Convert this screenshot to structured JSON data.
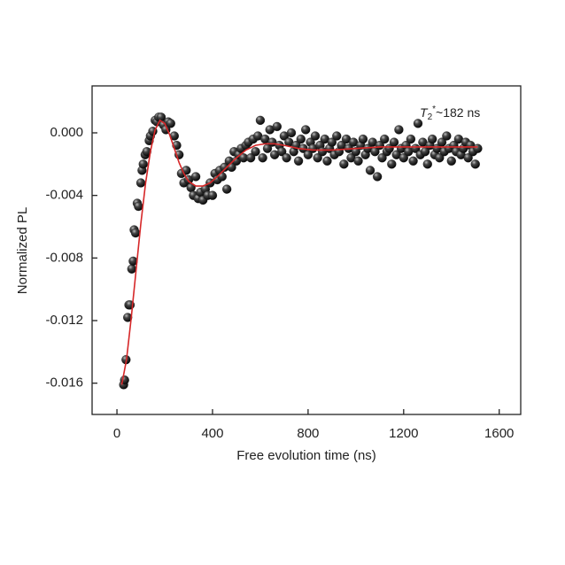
{
  "chart_data": {
    "type": "scatter",
    "xlabel": "Free evolution time (ns)",
    "ylabel": "Normalized PL",
    "annotation": {
      "symbol": "T",
      "subscript": "2",
      "superscript": "*",
      "text": "~182 ns"
    },
    "xlim": [
      -104,
      1690
    ],
    "ylim": [
      -0.018,
      0.003
    ],
    "xticks": [
      0,
      400,
      800,
      1200,
      1600
    ],
    "yticks": [
      {
        "value": 0,
        "label": "0.000"
      },
      {
        "value": -0.004,
        "label": "-0.004"
      },
      {
        "value": -0.008,
        "label": "-0.008"
      },
      {
        "value": -0.012,
        "label": "-0.012"
      },
      {
        "value": -0.016,
        "label": "-0.016"
      }
    ],
    "series": [
      {
        "type": "scatter",
        "color": "#1a1a1a",
        "x": [
          28,
          32,
          38,
          45,
          50,
          55,
          62,
          68,
          72,
          78,
          85,
          90,
          100,
          105,
          110,
          118,
          125,
          135,
          140,
          150,
          160,
          168,
          175,
          185,
          195,
          205,
          215,
          225,
          240,
          250,
          260,
          270,
          280,
          290,
          300,
          310,
          320,
          330,
          340,
          350,
          360,
          370,
          380,
          390,
          400,
          410,
          420,
          430,
          440,
          450,
          460,
          470,
          480,
          490,
          500,
          510,
          520,
          530,
          540,
          550,
          560,
          570,
          580,
          590,
          600,
          610,
          620,
          630,
          640,
          650,
          660,
          670,
          680,
          690,
          700,
          710,
          720,
          730,
          740,
          750,
          760,
          770,
          780,
          790,
          800,
          810,
          820,
          830,
          840,
          850,
          860,
          870,
          880,
          890,
          900,
          910,
          920,
          930,
          940,
          950,
          960,
          970,
          980,
          990,
          1000,
          1010,
          1020,
          1030,
          1040,
          1050,
          1060,
          1070,
          1080,
          1090,
          1100,
          1110,
          1120,
          1130,
          1140,
          1150,
          1160,
          1170,
          1180,
          1190,
          1200,
          1210,
          1220,
          1230,
          1240,
          1250,
          1260,
          1270,
          1280,
          1290,
          1300,
          1310,
          1320,
          1330,
          1340,
          1350,
          1360,
          1370,
          1380,
          1390,
          1400,
          1410,
          1420,
          1430,
          1440,
          1450,
          1460,
          1470,
          1480,
          1490,
          1500,
          1510
        ],
        "values": [
          -0.0161,
          -0.0158,
          -0.0145,
          -0.0118,
          -0.011,
          -0.011,
          -0.0087,
          -0.0082,
          -0.0062,
          -0.0064,
          -0.0045,
          -0.0047,
          -0.0032,
          -0.0024,
          -0.002,
          -0.0014,
          -0.0012,
          -0.0005,
          -0.0002,
          0.0001,
          0.0008,
          0.0007,
          0.001,
          0.001,
          0.0005,
          0.0002,
          0.0007,
          0.0006,
          -0.0002,
          -0.0008,
          -0.0014,
          -0.0026,
          -0.0032,
          -0.0024,
          -0.003,
          -0.0035,
          -0.004,
          -0.0028,
          -0.0042,
          -0.0038,
          -0.0043,
          -0.0036,
          -0.004,
          -0.0032,
          -0.004,
          -0.0026,
          -0.003,
          -0.0024,
          -0.0028,
          -0.0022,
          -0.0036,
          -0.0018,
          -0.0022,
          -0.0012,
          -0.0018,
          -0.0014,
          -0.001,
          -0.0016,
          -0.0008,
          -0.0006,
          -0.0016,
          -0.0004,
          -0.0012,
          -0.0002,
          0.0008,
          -0.0016,
          -0.0004,
          -0.001,
          0.0002,
          -0.0006,
          -0.0014,
          0.0004,
          -0.0008,
          -0.0012,
          -0.0002,
          -0.0016,
          -0.0006,
          0,
          -0.0012,
          -0.0008,
          -0.0018,
          -0.0004,
          -0.001,
          0.0002,
          -0.0014,
          -0.0006,
          -0.001,
          -0.0002,
          -0.0016,
          -0.0008,
          -0.0012,
          -0.0004,
          -0.0018,
          -0.001,
          -0.0006,
          -0.0014,
          -0.0002,
          -0.0012,
          -0.0008,
          -0.002,
          -0.0004,
          -0.001,
          -0.0016,
          -0.0006,
          -0.0012,
          -0.0018,
          -0.0008,
          -0.0004,
          -0.0014,
          -0.001,
          -0.0024,
          -0.0006,
          -0.0012,
          -0.0028,
          -0.0008,
          -0.0016,
          -0.0004,
          -0.0012,
          -0.001,
          -0.002,
          -0.0006,
          -0.0014,
          0.0002,
          -0.001,
          -0.0016,
          -0.0008,
          -0.0012,
          -0.0004,
          -0.0018,
          -0.001,
          0.0006,
          -0.0014,
          -0.0006,
          -0.0012,
          -0.002,
          -0.0008,
          -0.0004,
          -0.0014,
          -0.001,
          -0.0016,
          -0.0006,
          -0.0012,
          -0.0002,
          -0.001,
          -0.0018,
          -0.0008,
          -0.0012,
          -0.0004,
          -0.0014,
          -0.001,
          -0.0006,
          -0.0016,
          -0.0008,
          -0.0012,
          -0.002,
          -0.001
        ]
      },
      {
        "type": "line",
        "color": "#d62728",
        "x": [
          20,
          40,
          60,
          80,
          100,
          120,
          140,
          160,
          180,
          200,
          220,
          240,
          260,
          280,
          300,
          330,
          360,
          390,
          420,
          460,
          500,
          540,
          580,
          620,
          660,
          700,
          760,
          820,
          900,
          1000,
          1100,
          1200,
          1300,
          1400,
          1510
        ],
        "values": [
          -0.0161,
          -0.0145,
          -0.0118,
          -0.0088,
          -0.0058,
          -0.0032,
          -0.0012,
          0.0002,
          0.0008,
          0.0006,
          -0.0001,
          -0.001,
          -0.0019,
          -0.0026,
          -0.0031,
          -0.0034,
          -0.0034,
          -0.0032,
          -0.0028,
          -0.0022,
          -0.0016,
          -0.0011,
          -0.0008,
          -0.0007,
          -0.0007,
          -0.0008,
          -0.001,
          -0.0011,
          -0.0011,
          -0.001,
          -0.0009,
          -0.0009,
          -0.0009,
          -0.0009,
          -0.0009
        ]
      }
    ]
  }
}
